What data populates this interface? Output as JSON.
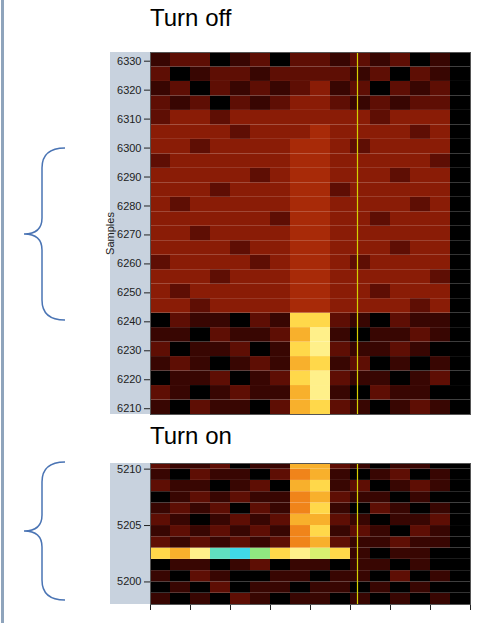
{
  "chart_data": [
    {
      "type": "heatmap",
      "title": "Turn off",
      "ylabel": "Samples",
      "xlim": [
        0,
        16
      ],
      "ylim": [
        6208,
        6333
      ],
      "yticks": [
        6210,
        6220,
        6230,
        6240,
        6250,
        6260,
        6270,
        6280,
        6290,
        6300,
        6310,
        6320,
        6330
      ],
      "tick_labels": "y",
      "xbins": [
        0,
        1,
        2,
        3,
        4,
        5,
        6,
        7,
        8,
        9,
        10,
        11,
        12,
        13,
        14,
        15,
        16
      ],
      "ybins": [
        6208,
        6213,
        6218,
        6223,
        6228,
        6233,
        6238,
        6243,
        6248,
        6253,
        6258,
        6263,
        6268,
        6273,
        6278,
        6283,
        6288,
        6293,
        6298,
        6303,
        6308,
        6313,
        6318,
        6323,
        6328,
        6333
      ],
      "zlim": [
        0,
        14
      ],
      "z": [
        [
          1,
          0,
          2,
          1,
          1,
          0,
          2,
          8,
          9,
          2,
          1,
          0,
          1,
          2,
          1,
          0
        ],
        [
          2,
          1,
          0,
          1,
          2,
          1,
          1,
          8,
          10,
          1,
          0,
          2,
          1,
          1,
          0,
          0
        ],
        [
          0,
          1,
          1,
          2,
          0,
          1,
          2,
          9,
          10,
          2,
          1,
          1,
          0,
          1,
          2,
          0
        ],
        [
          1,
          2,
          1,
          0,
          1,
          2,
          1,
          8,
          9,
          1,
          2,
          0,
          1,
          0,
          1,
          0
        ],
        [
          2,
          0,
          1,
          1,
          2,
          0,
          1,
          9,
          10,
          2,
          1,
          1,
          2,
          1,
          0,
          0
        ],
        [
          1,
          1,
          0,
          2,
          1,
          1,
          2,
          8,
          10,
          1,
          0,
          1,
          1,
          2,
          1,
          0
        ],
        [
          0,
          2,
          1,
          1,
          0,
          2,
          1,
          9,
          9,
          2,
          1,
          0,
          2,
          1,
          1,
          0
        ],
        [
          3,
          3,
          2,
          3,
          3,
          3,
          3,
          4,
          4,
          3,
          3,
          3,
          3,
          2,
          3,
          0
        ],
        [
          3,
          2,
          3,
          3,
          3,
          3,
          3,
          4,
          4,
          3,
          3,
          2,
          3,
          3,
          3,
          0
        ],
        [
          3,
          3,
          3,
          2,
          3,
          3,
          3,
          4,
          4,
          3,
          3,
          3,
          3,
          3,
          2,
          0
        ],
        [
          2,
          3,
          3,
          3,
          3,
          2,
          3,
          4,
          4,
          3,
          2,
          3,
          3,
          3,
          3,
          0
        ],
        [
          3,
          3,
          3,
          3,
          2,
          3,
          3,
          4,
          4,
          3,
          3,
          3,
          2,
          3,
          3,
          0
        ],
        [
          3,
          3,
          2,
          3,
          3,
          3,
          3,
          4,
          4,
          3,
          3,
          3,
          3,
          3,
          3,
          0
        ],
        [
          3,
          3,
          3,
          3,
          3,
          3,
          2,
          4,
          4,
          3,
          3,
          2,
          3,
          3,
          3,
          0
        ],
        [
          3,
          2,
          3,
          3,
          3,
          3,
          3,
          4,
          4,
          3,
          3,
          3,
          3,
          2,
          3,
          0
        ],
        [
          3,
          3,
          3,
          2,
          3,
          3,
          3,
          4,
          4,
          2,
          3,
          3,
          3,
          3,
          3,
          0
        ],
        [
          3,
          3,
          3,
          3,
          3,
          2,
          3,
          4,
          4,
          3,
          3,
          3,
          2,
          3,
          3,
          0
        ],
        [
          2,
          3,
          3,
          3,
          3,
          3,
          3,
          4,
          4,
          3,
          3,
          3,
          3,
          3,
          2,
          0
        ],
        [
          3,
          3,
          2,
          3,
          3,
          3,
          3,
          4,
          4,
          3,
          2,
          3,
          3,
          3,
          3,
          0
        ],
        [
          3,
          3,
          3,
          3,
          2,
          3,
          3,
          3,
          4,
          3,
          3,
          3,
          3,
          2,
          3,
          0
        ],
        [
          2,
          3,
          3,
          2,
          3,
          3,
          3,
          3,
          3,
          3,
          3,
          2,
          3,
          3,
          3,
          0
        ],
        [
          2,
          1,
          2,
          0,
          2,
          1,
          2,
          3,
          3,
          2,
          1,
          2,
          1,
          2,
          2,
          0
        ],
        [
          1,
          2,
          0,
          2,
          1,
          2,
          1,
          2,
          3,
          1,
          2,
          0,
          2,
          1,
          2,
          0
        ],
        [
          2,
          0,
          1,
          2,
          2,
          1,
          2,
          2,
          2,
          2,
          1,
          2,
          0,
          2,
          1,
          0
        ],
        [
          1,
          2,
          2,
          0,
          1,
          2,
          0,
          2,
          2,
          1,
          2,
          1,
          2,
          0,
          1,
          0
        ]
      ],
      "vline": 10.35
    },
    {
      "type": "heatmap",
      "title": "Turn on",
      "xlim": [
        0,
        16
      ],
      "ylim": [
        5198,
        5210.5
      ],
      "xticks": [
        0,
        2,
        4,
        6,
        8,
        10,
        12,
        14,
        16
      ],
      "yticks": [
        5200,
        5205,
        5210
      ],
      "tick_labels": "y",
      "xbins": [
        0,
        1,
        2,
        3,
        4,
        5,
        6,
        7,
        8,
        9,
        10,
        11,
        12,
        13,
        14,
        15,
        16
      ],
      "ybins": [
        5198,
        5199,
        5200,
        5201,
        5202,
        5203,
        5204,
        5205,
        5206,
        5207,
        5208,
        5209,
        5210,
        5211
      ],
      "zlim": [
        0,
        14
      ],
      "z": [
        [
          1,
          0,
          1,
          0,
          2,
          1,
          0,
          1,
          1,
          0,
          1,
          0,
          1,
          0,
          1,
          0
        ],
        [
          0,
          1,
          0,
          2,
          0,
          1,
          1,
          0,
          1,
          1,
          0,
          1,
          0,
          1,
          0,
          0
        ],
        [
          1,
          0,
          2,
          1,
          0,
          0,
          1,
          1,
          0,
          1,
          1,
          0,
          2,
          0,
          1,
          0
        ],
        [
          0,
          1,
          1,
          0,
          1,
          2,
          0,
          1,
          1,
          0,
          1,
          1,
          0,
          1,
          0,
          0
        ],
        [
          9,
          8,
          10,
          13,
          14,
          12,
          9,
          10,
          11,
          9,
          1,
          0,
          1,
          1,
          0,
          0
        ],
        [
          2,
          1,
          2,
          1,
          2,
          1,
          2,
          7,
          8,
          2,
          1,
          1,
          2,
          1,
          1,
          0
        ],
        [
          1,
          2,
          1,
          2,
          1,
          2,
          1,
          7,
          9,
          1,
          2,
          1,
          0,
          2,
          1,
          0
        ],
        [
          2,
          1,
          0,
          1,
          2,
          1,
          2,
          8,
          8,
          2,
          1,
          0,
          1,
          1,
          2,
          0
        ],
        [
          1,
          2,
          1,
          2,
          0,
          2,
          1,
          7,
          9,
          1,
          0,
          2,
          1,
          0,
          1,
          0
        ],
        [
          0,
          1,
          2,
          1,
          2,
          1,
          1,
          7,
          8,
          2,
          1,
          1,
          0,
          1,
          0,
          0
        ],
        [
          2,
          1,
          1,
          0,
          1,
          2,
          0,
          8,
          9,
          1,
          2,
          0,
          1,
          2,
          1,
          0
        ],
        [
          1,
          0,
          2,
          1,
          1,
          0,
          2,
          7,
          8,
          1,
          0,
          1,
          2,
          0,
          1,
          0
        ],
        [
          2,
          1,
          1,
          2,
          0,
          1,
          1,
          8,
          8,
          2,
          1,
          0,
          1,
          1,
          0,
          0
        ]
      ],
      "vline": 10.35
    }
  ]
}
